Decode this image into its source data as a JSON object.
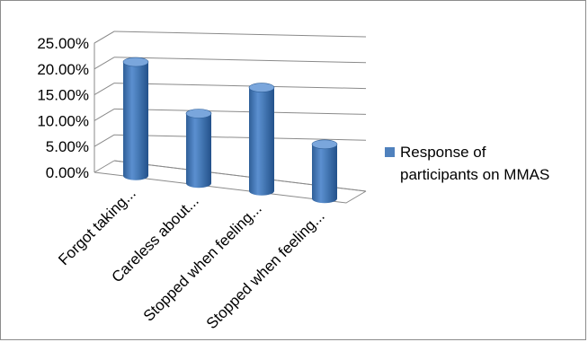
{
  "chart_data": {
    "type": "bar",
    "style": "3d-cylinder",
    "categories": [
      "Forgot taking...",
      "Careless about...",
      "Stopped when feeling...",
      "Stopped when feeling..."
    ],
    "series": [
      {
        "name": "Response of participants on MMAS",
        "values": [
          22.0,
          13.5,
          20.0,
          10.5
        ]
      }
    ],
    "ylim": [
      0,
      25
    ],
    "y_ticks": [
      "0.00%",
      "5.00%",
      "10.00%",
      "15.00%",
      "20.00%",
      "25.00%"
    ],
    "grid": true,
    "legend_position": "right",
    "colors": {
      "bar": "#4a7ebb",
      "bar_dark": "#2f5f98",
      "bar_light": "#7aa6dc",
      "legend": "#4f81bd"
    }
  }
}
